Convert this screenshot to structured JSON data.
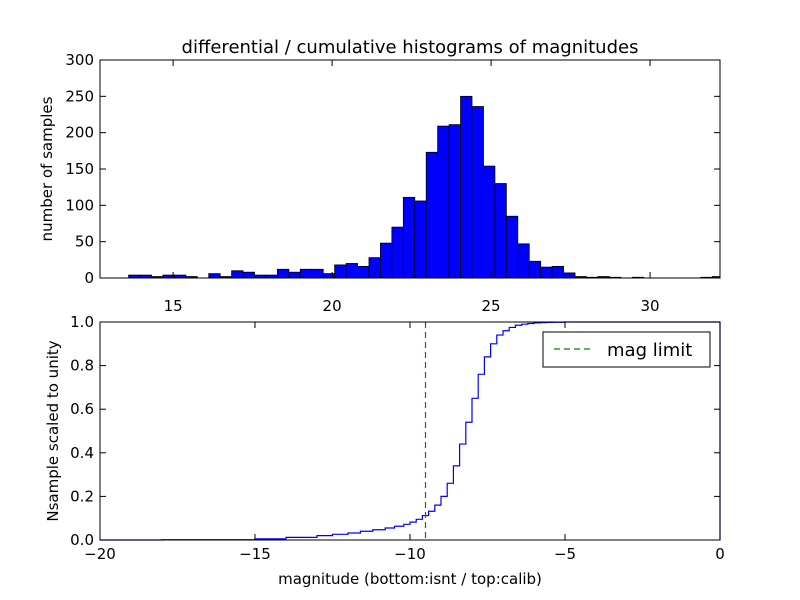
{
  "figure": {
    "title": "differential / cumulative histograms of magnitudes"
  },
  "chart_data": [
    {
      "type": "bar",
      "subtype": "histogram",
      "title": "differential / cumulative histograms of magnitudes",
      "xlabel": "",
      "ylabel": "number of samples",
      "xlim": [
        12.7,
        32.2
      ],
      "ylim": [
        0,
        300
      ],
      "xticks": [
        15,
        20,
        25,
        30
      ],
      "yticks": [
        0,
        50,
        100,
        150,
        200,
        250,
        300
      ],
      "xtick_position": "bottom",
      "grid": false,
      "bar_color": "#0000ff",
      "edge_color": "#000000",
      "bin_start": 13.6,
      "bin_width": 0.36,
      "values": [
        4,
        4,
        2,
        4,
        4,
        2,
        0,
        6,
        2,
        10,
        8,
        4,
        4,
        12,
        8,
        12,
        12,
        6,
        18,
        20,
        16,
        28,
        48,
        70,
        111,
        106,
        173,
        209,
        211,
        250,
        236,
        154,
        130,
        85,
        47,
        23,
        15,
        16,
        7,
        2,
        1,
        2,
        1,
        0,
        1,
        0,
        0,
        0,
        0,
        0,
        1,
        2
      ]
    },
    {
      "type": "line",
      "subtype": "cumulative-step",
      "title": "",
      "xlabel": "magnitude (bottom:isnt / top:calib)",
      "ylabel": "Nsample scaled to unity",
      "xlim": [
        -20,
        0
      ],
      "ylim": [
        0,
        1
      ],
      "xticks": [
        -20,
        -15,
        -10,
        -5,
        0
      ],
      "yticks": [
        0.0,
        0.2,
        0.4,
        0.6,
        0.8,
        1.0
      ],
      "ytick_labels": [
        "0.0",
        "0.2",
        "0.4",
        "0.6",
        "0.8",
        "1.0"
      ],
      "grid": false,
      "line_color": "#0000ff",
      "step_x": [
        -20.0,
        -18.0,
        -15.0,
        -14.0,
        -13.0,
        -12.5,
        -12.0,
        -11.6,
        -11.2,
        -10.8,
        -10.5,
        -10.2,
        -10.0,
        -9.8,
        -9.6,
        -9.4,
        -9.2,
        -9.0,
        -8.8,
        -8.6,
        -8.4,
        -8.2,
        -8.0,
        -7.8,
        -7.6,
        -7.4,
        -7.2,
        -7.0,
        -6.8,
        -6.6,
        -6.4,
        -6.2,
        -6.0,
        -5.8,
        -5.6,
        -5.4,
        -5.2,
        -5.0,
        -4.5,
        -0.05,
        0.0
      ],
      "step_y": [
        0.0,
        0.001,
        0.005,
        0.012,
        0.02,
        0.026,
        0.032,
        0.04,
        0.047,
        0.055,
        0.063,
        0.072,
        0.082,
        0.095,
        0.112,
        0.132,
        0.16,
        0.2,
        0.26,
        0.34,
        0.44,
        0.54,
        0.65,
        0.76,
        0.84,
        0.9,
        0.94,
        0.96,
        0.975,
        0.985,
        0.99,
        0.993,
        0.996,
        0.997,
        0.998,
        0.999,
        0.999,
        1.0,
        1.0,
        1.0,
        0.0
      ],
      "vline": {
        "x": -9.5,
        "name": "mag limit",
        "color": "#008000",
        "style": "dashed"
      },
      "legend": {
        "entries": [
          "mag limit"
        ],
        "placement": "top-right"
      }
    }
  ]
}
